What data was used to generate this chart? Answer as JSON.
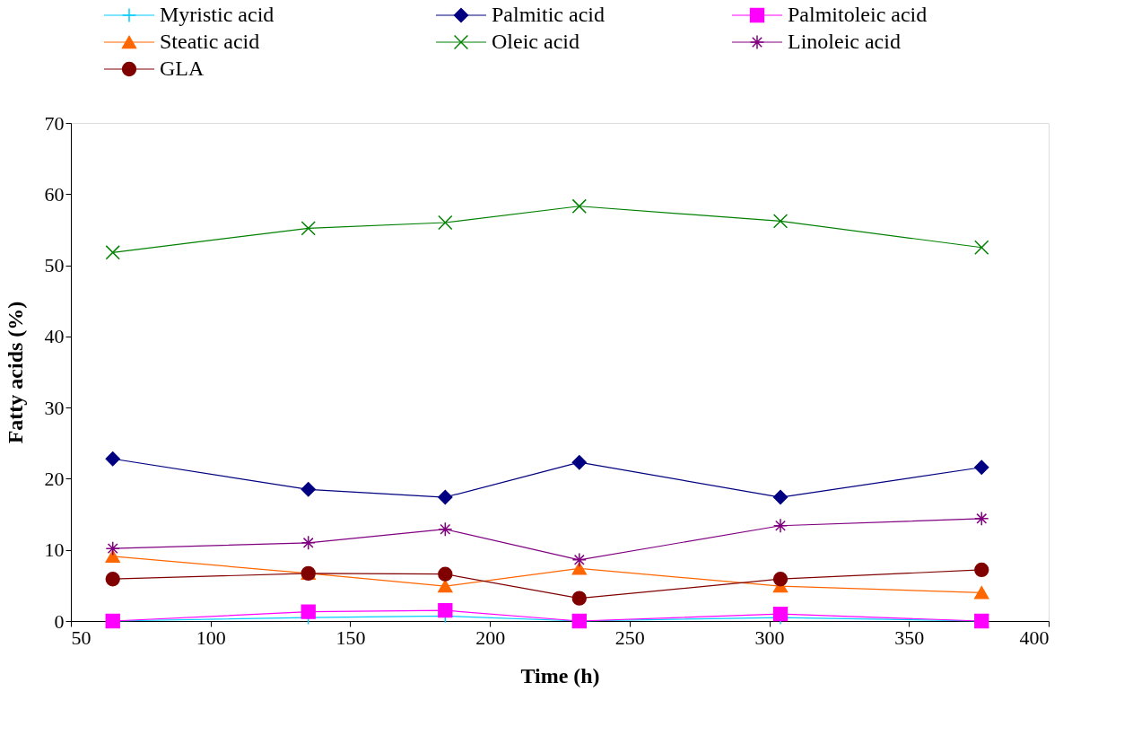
{
  "chart_data": {
    "type": "line",
    "xlabel": "Time (h)",
    "ylabel": "Fatty acids (%)",
    "x": [
      65,
      135,
      184,
      232,
      304,
      376
    ],
    "xlim": [
      50,
      400
    ],
    "xticks": [
      50,
      100,
      150,
      200,
      250,
      300,
      350,
      400
    ],
    "ylim": [
      0,
      70
    ],
    "yticks": [
      0,
      10,
      20,
      30,
      40,
      50,
      60,
      70
    ],
    "grid": false,
    "legend": "top",
    "series": [
      {
        "name": "Myristic acid",
        "color": "#00ccff",
        "marker": "plus",
        "values": [
          0,
          0.5,
          0.7,
          0,
          0.5,
          0
        ]
      },
      {
        "name": "Palmitic acid",
        "color": "#000080",
        "marker": "diamond",
        "values": [
          22.8,
          18.5,
          17.4,
          22.3,
          17.4,
          21.6
        ]
      },
      {
        "name": "Palmitoleic acid",
        "color": "#ff00ff",
        "marker": "square",
        "values": [
          0,
          1.3,
          1.5,
          0,
          1.0,
          0
        ]
      },
      {
        "name": "Steatic acid",
        "color": "#ff6600",
        "marker": "triangle",
        "values": [
          9.1,
          6.7,
          4.9,
          7.4,
          4.9,
          4.0
        ]
      },
      {
        "name": "Oleic acid",
        "color": "#008000",
        "marker": "x",
        "values": [
          51.8,
          55.2,
          56.0,
          58.3,
          56.2,
          52.5
        ]
      },
      {
        "name": "Linoleic acid",
        "color": "#800080",
        "marker": "cross",
        "values": [
          10.2,
          11.0,
          12.9,
          8.6,
          13.4,
          14.4
        ]
      },
      {
        "name": "GLA",
        "color": "#800000",
        "marker": "circle",
        "values": [
          5.9,
          6.7,
          6.6,
          3.2,
          5.9,
          7.2
        ]
      }
    ]
  }
}
